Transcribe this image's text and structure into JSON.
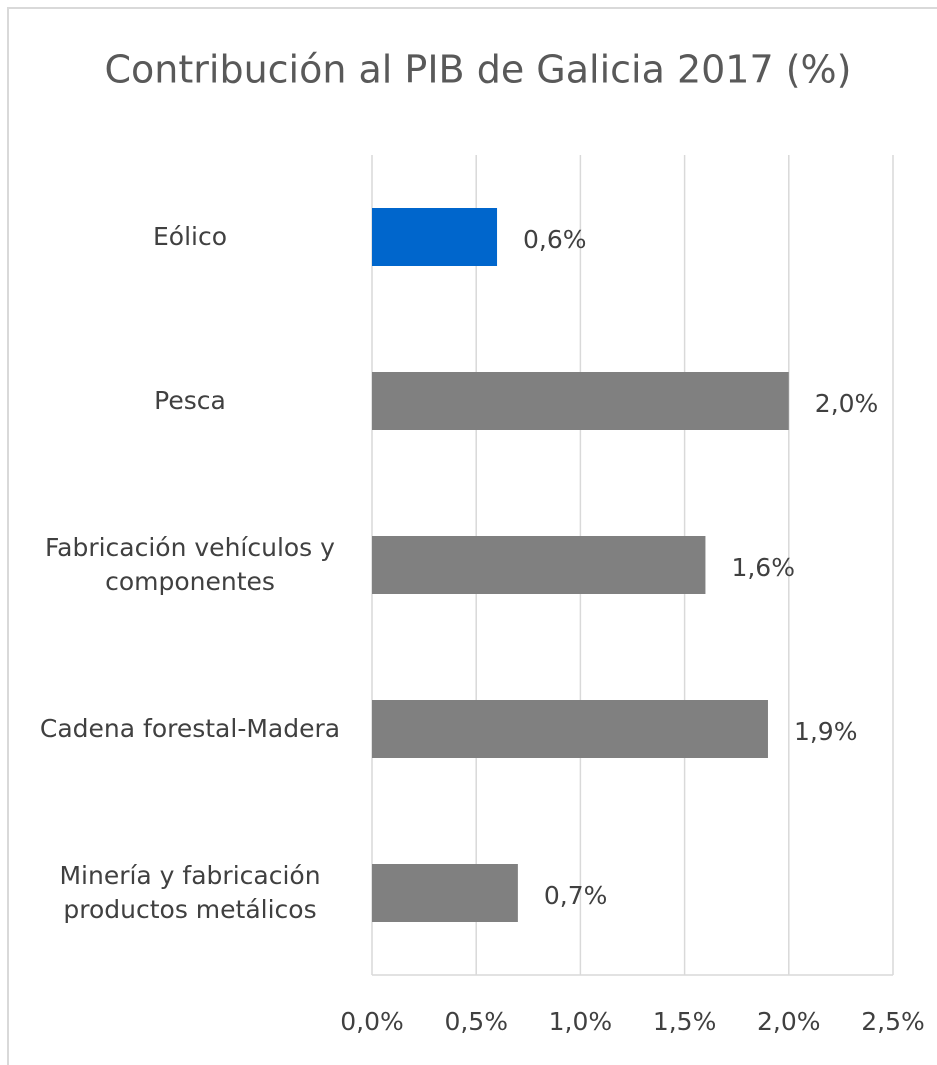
{
  "chart_data": {
    "type": "bar",
    "orientation": "horizontal",
    "title": "Contribución al PIB de Galicia 2017 (%)",
    "categories": [
      "Eólico",
      "Pesca",
      "Fabricación vehículos y componentes",
      "Cadena forestal-Madera",
      "Minería y fabricación productos metálicos"
    ],
    "values": [
      0.6,
      2.0,
      1.6,
      1.9,
      0.7
    ],
    "value_labels": [
      "0,6%",
      "2,0%",
      "1,6%",
      "1,9%",
      "0,7%"
    ],
    "colors": [
      "#0066cc",
      "#808080",
      "#808080",
      "#808080",
      "#808080"
    ],
    "xlim": [
      0,
      2.5
    ],
    "xticks": [
      {
        "value": 0,
        "label": "0,0%"
      },
      {
        "value": 0.5,
        "label": "0,5%"
      },
      {
        "value": 1.0,
        "label": "1,0%"
      },
      {
        "value": 1.5,
        "label": "1,5%"
      },
      {
        "value": 2.0,
        "label": "2,0%"
      },
      {
        "value": 2.5,
        "label": "2,5%"
      }
    ],
    "grid": true
  }
}
